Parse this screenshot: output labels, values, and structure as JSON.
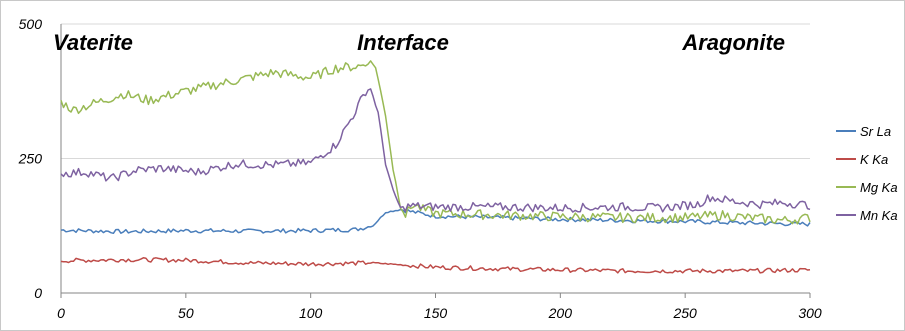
{
  "chart_data": {
    "type": "line",
    "xlim": [
      0,
      300
    ],
    "ylim": [
      0,
      500
    ],
    "x_ticks": [
      "0",
      "50",
      "100",
      "150",
      "200",
      "250",
      "300"
    ],
    "y_ticks": [
      "0",
      "250",
      "500"
    ],
    "grid": "horizontal",
    "legend_position": "right",
    "annotations": [
      {
        "text": "Vaterite",
        "x": 0
      },
      {
        "text": "Interface",
        "x": 137
      },
      {
        "text": "Aragonite",
        "x": 290
      }
    ],
    "series": [
      {
        "name": "Sr La",
        "color": "#4a7ebb",
        "points": [
          [
            0,
            117
          ],
          [
            25,
            114
          ],
          [
            50,
            116
          ],
          [
            75,
            115
          ],
          [
            100,
            116
          ],
          [
            118,
            118
          ],
          [
            125,
            125
          ],
          [
            130,
            150
          ],
          [
            136,
            155
          ],
          [
            150,
            143
          ],
          [
            175,
            140
          ],
          [
            200,
            137
          ],
          [
            225,
            135
          ],
          [
            250,
            133
          ],
          [
            275,
            130
          ],
          [
            300,
            128
          ]
        ]
      },
      {
        "name": "K  Ka",
        "color": "#be4b48",
        "points": [
          [
            0,
            60
          ],
          [
            25,
            62
          ],
          [
            50,
            61
          ],
          [
            75,
            56
          ],
          [
            100,
            54
          ],
          [
            125,
            56
          ],
          [
            150,
            48
          ],
          [
            175,
            45
          ],
          [
            200,
            43
          ],
          [
            225,
            41
          ],
          [
            250,
            41
          ],
          [
            275,
            41
          ],
          [
            300,
            43
          ]
        ]
      },
      {
        "name": "Mg Ka",
        "color": "#98b954",
        "points": [
          [
            0,
            355
          ],
          [
            5,
            340
          ],
          [
            15,
            355
          ],
          [
            25,
            370
          ],
          [
            35,
            358
          ],
          [
            50,
            375
          ],
          [
            70,
            395
          ],
          [
            85,
            410
          ],
          [
            100,
            400
          ],
          [
            110,
            418
          ],
          [
            120,
            422
          ],
          [
            124,
            430
          ],
          [
            126,
            420
          ],
          [
            130,
            330
          ],
          [
            133,
            230
          ],
          [
            136,
            160
          ],
          [
            138,
            145
          ],
          [
            141,
            165
          ],
          [
            145,
            155
          ],
          [
            150,
            148
          ],
          [
            175,
            145
          ],
          [
            200,
            142
          ],
          [
            225,
            140
          ],
          [
            250,
            140
          ],
          [
            265,
            145
          ],
          [
            275,
            140
          ],
          [
            290,
            135
          ],
          [
            300,
            140
          ]
        ]
      },
      {
        "name": "Mn Ka",
        "color": "#7e62a1",
        "points": [
          [
            0,
            222
          ],
          [
            10,
            225
          ],
          [
            20,
            212
          ],
          [
            30,
            228
          ],
          [
            40,
            232
          ],
          [
            55,
            225
          ],
          [
            70,
            240
          ],
          [
            85,
            238
          ],
          [
            100,
            242
          ],
          [
            110,
            275
          ],
          [
            117,
            330
          ],
          [
            122,
            375
          ],
          [
            124,
            380
          ],
          [
            127,
            335
          ],
          [
            130,
            240
          ],
          [
            133,
            190
          ],
          [
            136,
            158
          ],
          [
            140,
            162
          ],
          [
            150,
            160
          ],
          [
            175,
            160
          ],
          [
            200,
            158
          ],
          [
            225,
            160
          ],
          [
            240,
            158
          ],
          [
            255,
            165
          ],
          [
            260,
            178
          ],
          [
            270,
            170
          ],
          [
            280,
            165
          ],
          [
            290,
            168
          ],
          [
            300,
            163
          ]
        ]
      }
    ]
  }
}
